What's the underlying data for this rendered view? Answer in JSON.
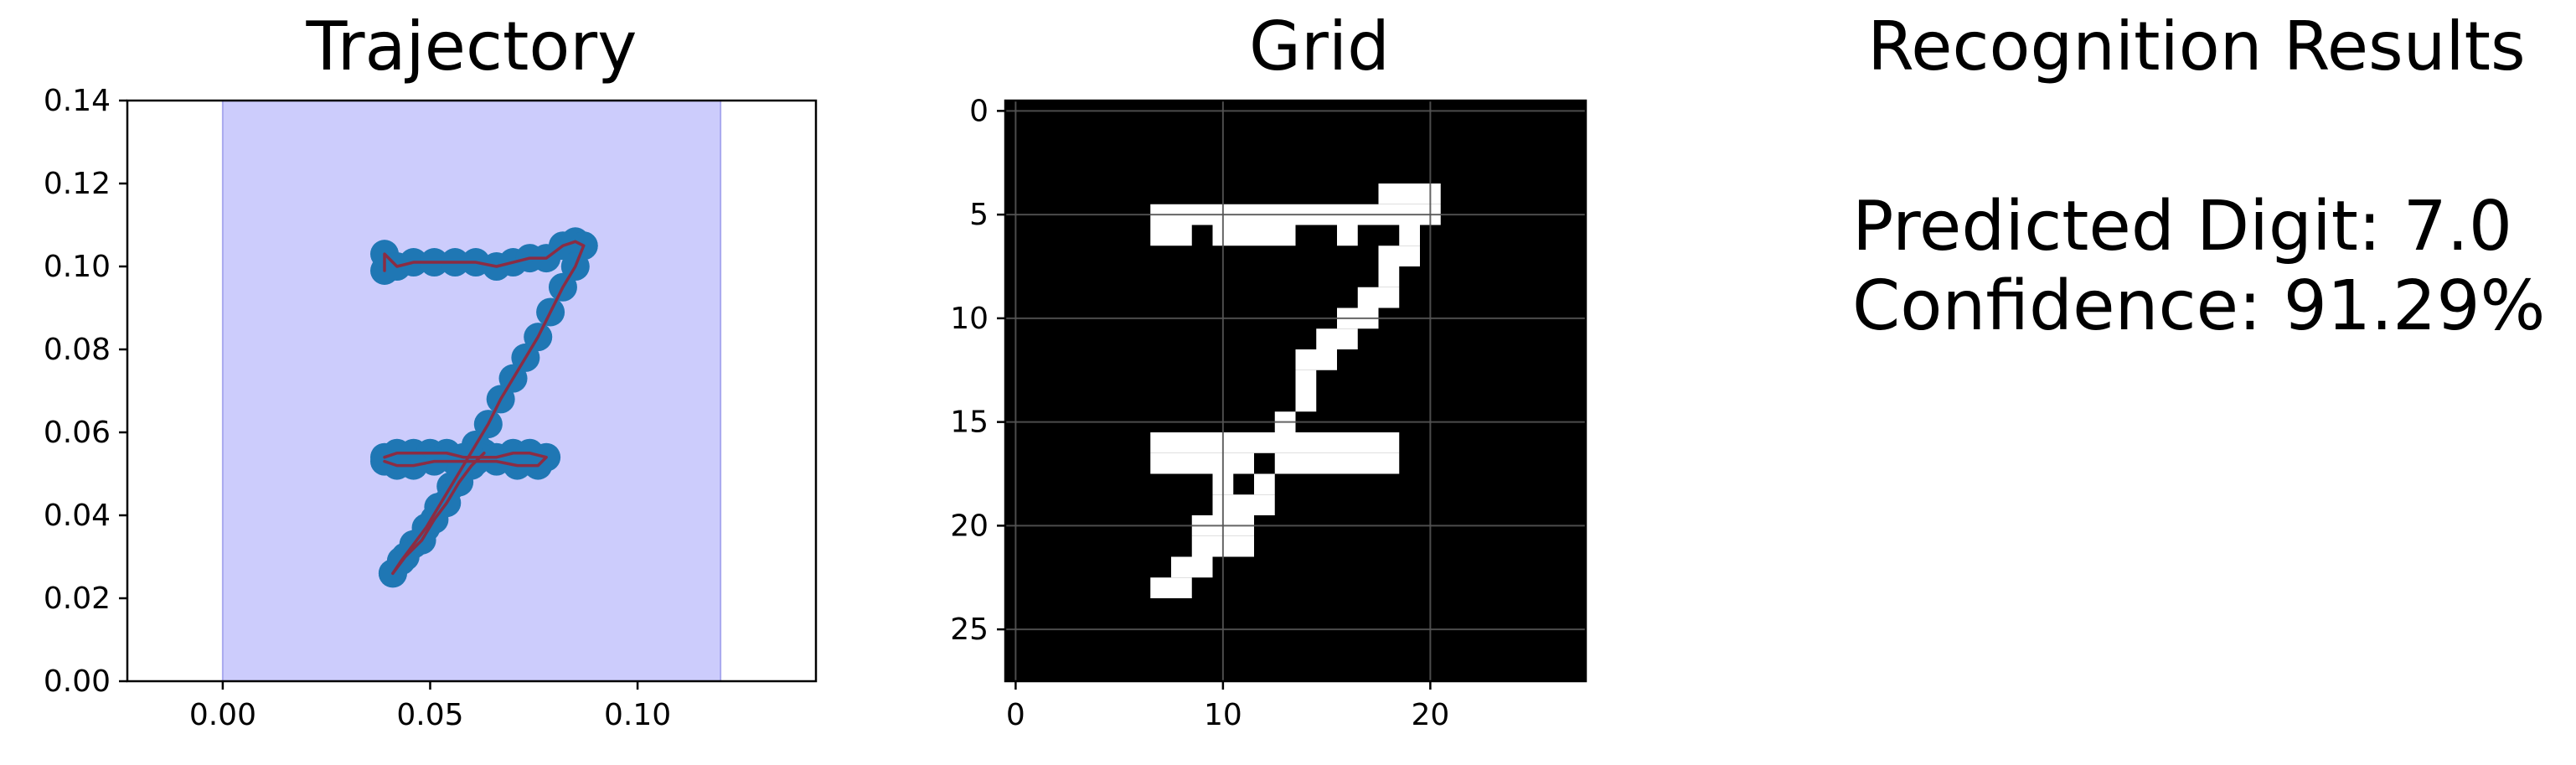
{
  "colors": {
    "background": "#ffffff",
    "span_fill": "#ccccfc",
    "span_edge": "#a9a9ee",
    "marker": "#1f77b4",
    "path": "#8b2c43",
    "grid_bg": "#000000",
    "pixel_on": "#ffffff",
    "grid_line": "#555555"
  },
  "chart_data": [
    {
      "type": "scatter",
      "title": "Trajectory",
      "xlim": [
        -0.023,
        0.143
      ],
      "ylim": [
        0.0,
        0.14
      ],
      "xticks": [
        "0.00",
        "0.05",
        "0.10"
      ],
      "xtick_values": [
        0.0,
        0.05,
        0.1
      ],
      "yticks": [
        "0.00",
        "0.02",
        "0.04",
        "0.06",
        "0.08",
        "0.10",
        "0.12",
        "0.14"
      ],
      "ytick_values": [
        0.0,
        0.02,
        0.04,
        0.06,
        0.08,
        0.1,
        0.12,
        0.14
      ],
      "shaded_span": [
        0.0,
        0.12
      ],
      "grid": false,
      "strokes": [
        [
          [
            0.039,
            0.099
          ],
          [
            0.039,
            0.103
          ],
          [
            0.042,
            0.1
          ],
          [
            0.046,
            0.101
          ],
          [
            0.051,
            0.101
          ],
          [
            0.056,
            0.101
          ],
          [
            0.061,
            0.101
          ],
          [
            0.066,
            0.1
          ],
          [
            0.07,
            0.101
          ],
          [
            0.074,
            0.102
          ],
          [
            0.078,
            0.102
          ],
          [
            0.082,
            0.105
          ],
          [
            0.085,
            0.106
          ],
          [
            0.087,
            0.105
          ]
        ],
        [
          [
            0.087,
            0.105
          ],
          [
            0.085,
            0.1
          ],
          [
            0.082,
            0.095
          ],
          [
            0.079,
            0.089
          ],
          [
            0.076,
            0.083
          ],
          [
            0.073,
            0.078
          ],
          [
            0.07,
            0.073
          ],
          [
            0.067,
            0.068
          ],
          [
            0.064,
            0.062
          ],
          [
            0.061,
            0.057
          ],
          [
            0.058,
            0.052
          ],
          [
            0.055,
            0.047
          ],
          [
            0.052,
            0.042
          ],
          [
            0.049,
            0.037
          ],
          [
            0.046,
            0.033
          ],
          [
            0.043,
            0.029
          ],
          [
            0.041,
            0.026
          ]
        ],
        [
          [
            0.041,
            0.026
          ],
          [
            0.044,
            0.03
          ],
          [
            0.048,
            0.034
          ],
          [
            0.051,
            0.039
          ],
          [
            0.054,
            0.043
          ],
          [
            0.057,
            0.048
          ],
          [
            0.06,
            0.052
          ],
          [
            0.063,
            0.055
          ]
        ],
        [
          [
            0.039,
            0.054
          ],
          [
            0.042,
            0.055
          ],
          [
            0.046,
            0.055
          ],
          [
            0.05,
            0.055
          ],
          [
            0.054,
            0.055
          ],
          [
            0.058,
            0.054
          ],
          [
            0.062,
            0.054
          ],
          [
            0.066,
            0.054
          ],
          [
            0.07,
            0.055
          ],
          [
            0.074,
            0.055
          ],
          [
            0.078,
            0.054
          ],
          [
            0.076,
            0.052
          ],
          [
            0.071,
            0.052
          ],
          [
            0.066,
            0.053
          ],
          [
            0.061,
            0.053
          ],
          [
            0.056,
            0.053
          ],
          [
            0.051,
            0.053
          ],
          [
            0.046,
            0.052
          ],
          [
            0.042,
            0.052
          ],
          [
            0.039,
            0.053
          ]
        ]
      ]
    },
    {
      "type": "heatmap",
      "title": "Grid",
      "size": 28,
      "xticks": [
        "0",
        "10",
        "20"
      ],
      "xtick_values": [
        0,
        10,
        20
      ],
      "yticks": [
        "0",
        "5",
        "10",
        "15",
        "20",
        "25"
      ],
      "ytick_values": [
        0,
        5,
        10,
        15,
        20,
        25
      ],
      "grid": true,
      "on_pixels": [
        [
          4,
          18,
          20
        ],
        [
          5,
          7,
          20
        ],
        [
          6,
          7,
          8
        ],
        [
          6,
          10,
          13
        ],
        [
          6,
          16,
          16
        ],
        [
          6,
          19,
          19
        ],
        [
          7,
          18,
          19
        ],
        [
          8,
          18,
          18
        ],
        [
          9,
          17,
          18
        ],
        [
          10,
          16,
          17
        ],
        [
          11,
          15,
          16
        ],
        [
          12,
          14,
          15
        ],
        [
          13,
          14,
          14
        ],
        [
          14,
          14,
          14
        ],
        [
          15,
          13,
          13
        ],
        [
          16,
          7,
          18
        ],
        [
          17,
          7,
          11
        ],
        [
          17,
          13,
          18
        ],
        [
          18,
          10,
          10
        ],
        [
          18,
          12,
          12
        ],
        [
          19,
          10,
          12
        ],
        [
          20,
          9,
          11
        ],
        [
          21,
          9,
          11
        ],
        [
          22,
          8,
          9
        ],
        [
          23,
          7,
          8
        ]
      ]
    }
  ],
  "results": {
    "title": "Recognition Results",
    "line1": "Predicted Digit: 7.0",
    "line2": "Confidence: 91.29%"
  }
}
